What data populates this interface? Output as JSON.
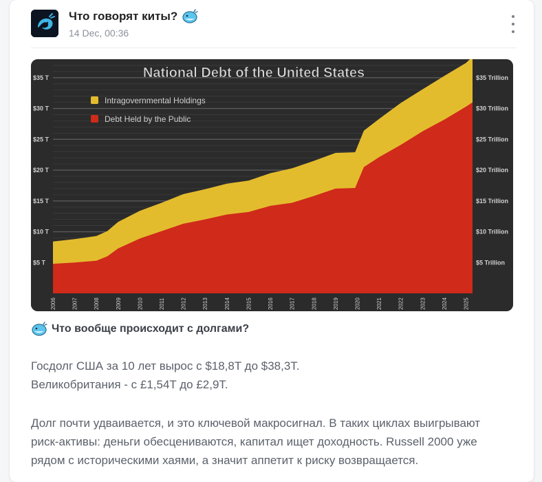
{
  "post": {
    "channel_name": "Что говорят киты?",
    "timestamp": "14 Dec, 00:36",
    "subheading": "Что вообще происходит с долгами?",
    "paragraphs": [
      "Госдолг США за 10 лет вырос с $18,8T до $38,3T.",
      "Великобритания - с £1,54T до £2,9T.",
      "Долг почти удваивается, и это ключевой макросигнал. В таких циклах выигрывают",
      "риск-активы: деньги обесцениваются, капитал ищет доходность. Russell 2000 уже",
      "рядом с историческими хаями, а значит аппетит к риску возвращается."
    ],
    "icons": {
      "avatar": "whale-logo-icon",
      "title_emoji": "whale-emoji-icon",
      "menu": "more-vertical-icon"
    }
  },
  "chart_data": {
    "type": "area",
    "title": "National Debt of the United States",
    "colors": {
      "background": "#2b2b2b",
      "public": "#cf2a1a",
      "intragov": "#e3bc2e",
      "text": "#cfcfcf"
    },
    "ylim": [
      0,
      38
    ],
    "left_tick_values": [
      5,
      10,
      15,
      20,
      25,
      30,
      35
    ],
    "left_tick_labels": [
      "$5 T",
      "$10 T",
      "$15 T",
      "$20 T",
      "$25 T",
      "$30 T",
      "$35 T"
    ],
    "right_tick_labels": [
      "$5 Trillion",
      "$10 Trillion",
      "$15 Trillion",
      "$20 Trillion",
      "$25 Trillion",
      "$30 Trillion",
      "$35 Trillion"
    ],
    "x_tick_labels": [
      "2006",
      "2007",
      "2008",
      "2009",
      "2010",
      "2011",
      "2012",
      "2013",
      "2014",
      "2015",
      "2016",
      "2017",
      "2018",
      "2019",
      "2020",
      "2021",
      "2022",
      "2023",
      "2024",
      "2025"
    ],
    "legend": [
      "Intragovernmental Holdings",
      "Debt Held by the Public"
    ],
    "legend_position": "top-left",
    "grid": true,
    "series": [
      {
        "name": "Debt Held by the Public",
        "x": [
          2006,
          2007,
          2008,
          2008.5,
          2009,
          2010,
          2011,
          2012,
          2013,
          2014,
          2015,
          2016,
          2017,
          2018,
          2019,
          2019.9,
          2020.3,
          2021,
          2022,
          2023,
          2024,
          2025,
          2025.3
        ],
        "values": [
          4.8,
          5.0,
          5.3,
          6.0,
          7.3,
          8.9,
          10.1,
          11.3,
          12.0,
          12.8,
          13.2,
          14.2,
          14.7,
          15.8,
          17.0,
          17.1,
          20.5,
          22.1,
          24.1,
          26.3,
          28.2,
          30.3,
          31.0
        ]
      },
      {
        "name": "Intragovernmental Holdings",
        "x": [
          2006,
          2007,
          2008,
          2008.5,
          2009,
          2010,
          2011,
          2012,
          2013,
          2014,
          2015,
          2016,
          2017,
          2018,
          2019,
          2019.9,
          2020.3,
          2021,
          2022,
          2023,
          2024,
          2025,
          2025.3
        ],
        "values": [
          3.6,
          3.8,
          4.0,
          4.1,
          4.3,
          4.5,
          4.6,
          4.8,
          4.9,
          5.0,
          5.1,
          5.3,
          5.6,
          5.7,
          5.8,
          5.8,
          5.9,
          6.2,
          6.8,
          6.8,
          7.1,
          7.1,
          7.4
        ]
      }
    ]
  }
}
